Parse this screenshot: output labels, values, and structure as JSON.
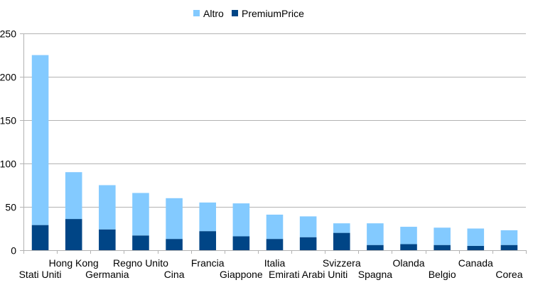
{
  "chart_data": {
    "type": "bar",
    "stacked": true,
    "categories": [
      "Stati Uniti",
      "Hong Kong",
      "Germania",
      "Regno Unito",
      "Cina",
      "Francia",
      "Giappone",
      "Italia",
      "Emirati Arabi Uniti",
      "Svizzera",
      "Spagna",
      "Olanda",
      "Belgio",
      "Canada",
      "Corea"
    ],
    "series": [
      {
        "name": "PremiumPrice",
        "color": "#004586",
        "values": [
          29,
          36,
          24,
          17,
          13,
          22,
          16,
          13,
          15,
          20,
          6,
          7,
          6,
          5,
          6
        ]
      },
      {
        "name": "Altro",
        "color": "#83caff",
        "values": [
          196,
          54,
          51,
          49,
          47,
          33,
          38,
          28,
          24,
          11,
          25,
          20,
          20,
          20,
          17
        ]
      }
    ],
    "legend_order": [
      "Altro",
      "PremiumPrice"
    ],
    "legend_position": "top",
    "yticks": [
      0,
      50,
      100,
      150,
      200,
      250
    ],
    "ylim": [
      0,
      250
    ],
    "grid": true
  }
}
